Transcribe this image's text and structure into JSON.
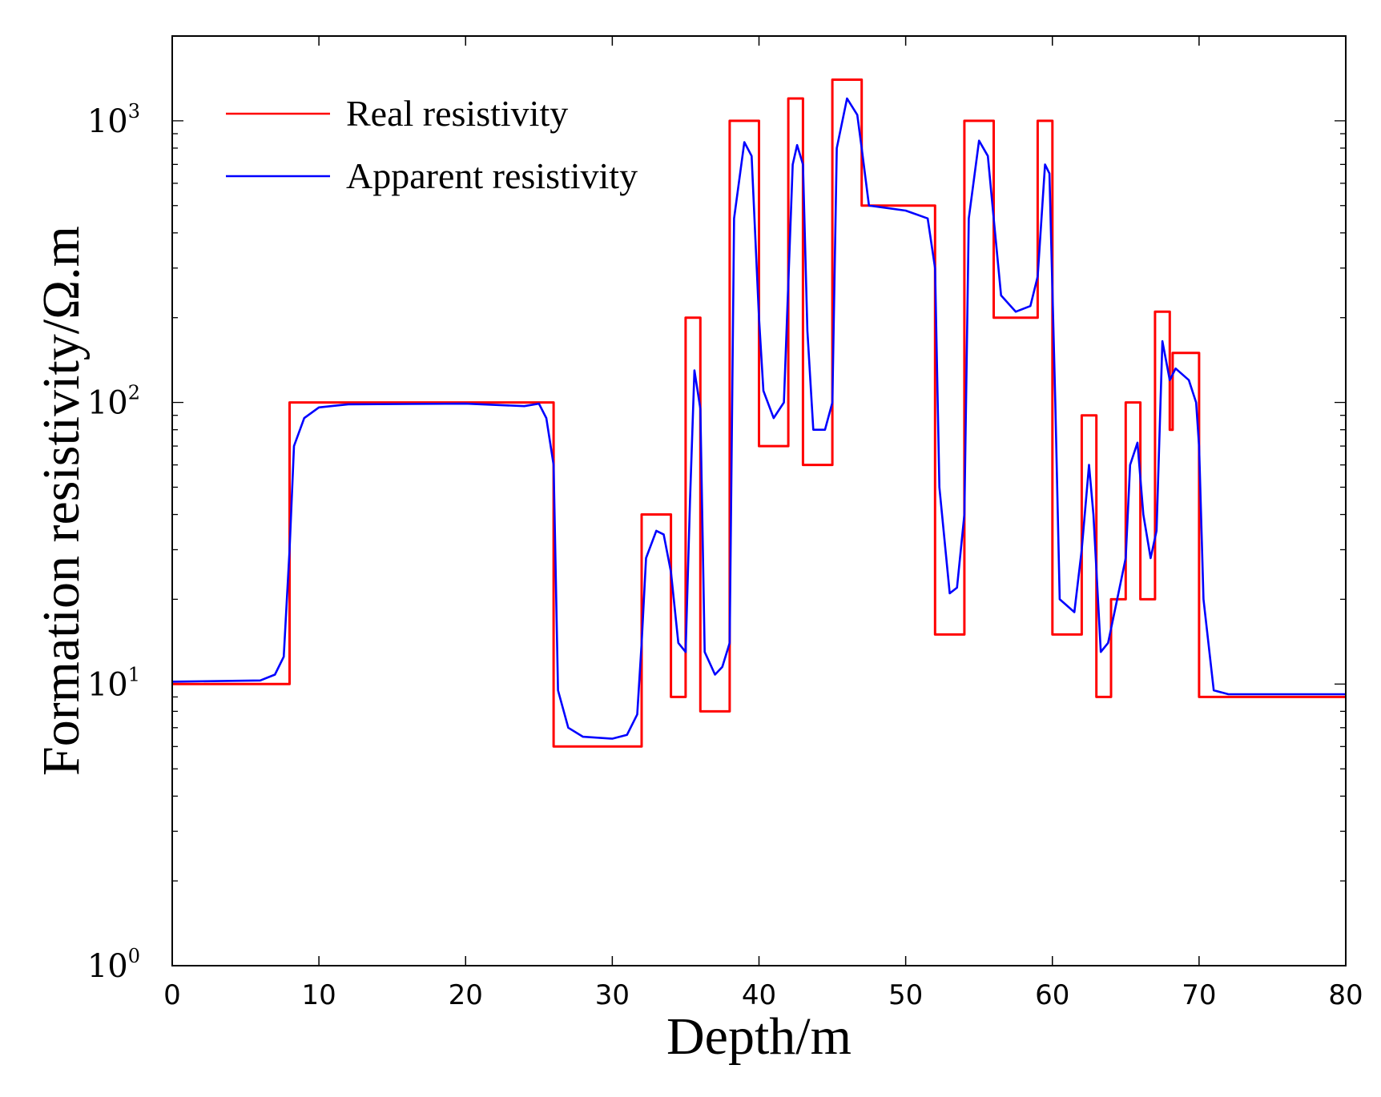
{
  "chart_data": {
    "type": "line",
    "xlabel": "Depth/m",
    "ylabel": "Formation resistivity/Ω.m",
    "xlim": [
      0,
      80
    ],
    "ylim": [
      1,
      2000
    ],
    "yscale": "log",
    "grid": false,
    "legend_position": "top-left",
    "x_ticks": [
      "0",
      "10",
      "20",
      "30",
      "40",
      "50",
      "60",
      "70",
      "80"
    ],
    "y_ticks": [
      {
        "value": 1,
        "base": "10",
        "exp": "0"
      },
      {
        "value": 10,
        "base": "10",
        "exp": "1"
      },
      {
        "value": 100,
        "base": "10",
        "exp": "2"
      },
      {
        "value": 1000,
        "base": "10",
        "exp": "3"
      }
    ],
    "series": [
      {
        "name": "Real resistivity",
        "color": "#ff0000",
        "points": [
          [
            0,
            10
          ],
          [
            8,
            10
          ],
          [
            8,
            100
          ],
          [
            26,
            100
          ],
          [
            26,
            6
          ],
          [
            32,
            6
          ],
          [
            32,
            40
          ],
          [
            34,
            40
          ],
          [
            34,
            9
          ],
          [
            35,
            9
          ],
          [
            35,
            200
          ],
          [
            36,
            200
          ],
          [
            36,
            8
          ],
          [
            38,
            8
          ],
          [
            38,
            1000
          ],
          [
            40,
            1000
          ],
          [
            40,
            70
          ],
          [
            42,
            70
          ],
          [
            42,
            1200
          ],
          [
            43,
            1200
          ],
          [
            43,
            60
          ],
          [
            45,
            60
          ],
          [
            45,
            1400
          ],
          [
            47,
            1400
          ],
          [
            47,
            500
          ],
          [
            52,
            500
          ],
          [
            52,
            15
          ],
          [
            54,
            15
          ],
          [
            54,
            1000
          ],
          [
            56,
            1000
          ],
          [
            56,
            200
          ],
          [
            59,
            200
          ],
          [
            59,
            1000
          ],
          [
            60,
            1000
          ],
          [
            60,
            15
          ],
          [
            62,
            15
          ],
          [
            62,
            90
          ],
          [
            63,
            90
          ],
          [
            63,
            9
          ],
          [
            64,
            9
          ],
          [
            64,
            20
          ],
          [
            65,
            20
          ],
          [
            65,
            100
          ],
          [
            66,
            100
          ],
          [
            66,
            20
          ],
          [
            67,
            20
          ],
          [
            67,
            210
          ],
          [
            68,
            210
          ],
          [
            68,
            80
          ],
          [
            68.2,
            80
          ],
          [
            68.2,
            150
          ],
          [
            70,
            150
          ],
          [
            70,
            9
          ],
          [
            80,
            9
          ]
        ]
      },
      {
        "name": "Apparent resistivity",
        "color": "#0000ff",
        "points": [
          [
            0,
            10.2
          ],
          [
            6,
            10.3
          ],
          [
            7,
            10.8
          ],
          [
            7.6,
            12.5
          ],
          [
            8,
            30
          ],
          [
            8.3,
            70
          ],
          [
            9,
            88
          ],
          [
            10,
            96
          ],
          [
            12,
            98.5
          ],
          [
            20,
            99
          ],
          [
            24,
            97
          ],
          [
            25,
            99
          ],
          [
            25.5,
            88
          ],
          [
            26,
            60
          ],
          [
            26.3,
            9.5
          ],
          [
            27,
            7
          ],
          [
            28,
            6.5
          ],
          [
            30,
            6.4
          ],
          [
            31,
            6.6
          ],
          [
            31.7,
            7.8
          ],
          [
            32,
            14
          ],
          [
            32.3,
            28
          ],
          [
            33,
            35
          ],
          [
            33.5,
            34
          ],
          [
            34,
            25
          ],
          [
            34.5,
            14
          ],
          [
            35,
            13
          ],
          [
            35.3,
            45
          ],
          [
            35.6,
            130
          ],
          [
            36,
            95
          ],
          [
            36.3,
            13
          ],
          [
            37,
            10.8
          ],
          [
            37.5,
            11.5
          ],
          [
            38,
            14
          ],
          [
            38.3,
            450
          ],
          [
            39,
            840
          ],
          [
            39.5,
            750
          ],
          [
            40,
            200
          ],
          [
            40.3,
            110
          ],
          [
            41,
            88
          ],
          [
            41.7,
            100
          ],
          [
            42.3,
            700
          ],
          [
            42.6,
            820
          ],
          [
            43,
            700
          ],
          [
            43.3,
            180
          ],
          [
            43.7,
            80
          ],
          [
            44.5,
            80
          ],
          [
            45,
            100
          ],
          [
            45.3,
            800
          ],
          [
            46,
            1200
          ],
          [
            46.7,
            1050
          ],
          [
            47,
            800
          ],
          [
            47.5,
            500
          ],
          [
            50,
            480
          ],
          [
            51.5,
            450
          ],
          [
            52,
            300
          ],
          [
            52.3,
            50
          ],
          [
            53,
            21
          ],
          [
            53.5,
            22
          ],
          [
            54,
            40
          ],
          [
            54.3,
            450
          ],
          [
            55,
            850
          ],
          [
            55.6,
            750
          ],
          [
            56,
            450
          ],
          [
            56.5,
            240
          ],
          [
            57.5,
            210
          ],
          [
            58.5,
            220
          ],
          [
            59,
            280
          ],
          [
            59.5,
            700
          ],
          [
            59.8,
            650
          ],
          [
            60.2,
            100
          ],
          [
            60.5,
            20
          ],
          [
            61.5,
            18
          ],
          [
            62,
            30
          ],
          [
            62.5,
            60
          ],
          [
            62.8,
            40
          ],
          [
            63.3,
            13
          ],
          [
            63.8,
            14
          ],
          [
            64.5,
            21
          ],
          [
            65,
            28
          ],
          [
            65.3,
            60
          ],
          [
            65.8,
            72
          ],
          [
            66.2,
            40
          ],
          [
            66.7,
            28
          ],
          [
            67.1,
            35
          ],
          [
            67.5,
            165
          ],
          [
            68,
            120
          ],
          [
            68.4,
            132
          ],
          [
            69.3,
            120
          ],
          [
            69.8,
            100
          ],
          [
            70,
            70
          ],
          [
            70.3,
            20
          ],
          [
            71,
            9.5
          ],
          [
            72,
            9.2
          ],
          [
            80,
            9.2
          ]
        ]
      }
    ]
  }
}
